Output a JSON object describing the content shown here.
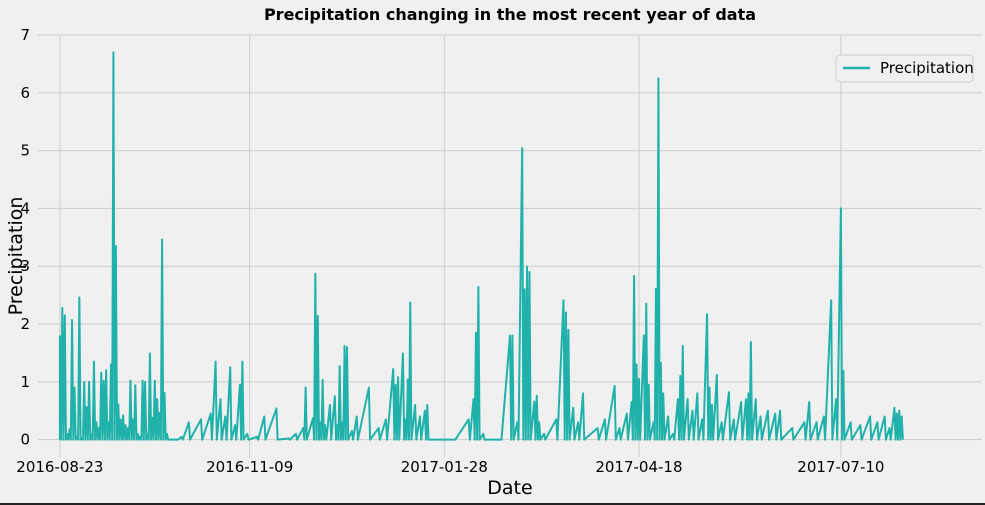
{
  "chart_data": {
    "type": "line",
    "title": "Precipitation changing in the most recent year of data",
    "xlabel": "Date",
    "ylabel": "Precipitation",
    "x_range": [
      "2016-08-14",
      "2017-09-06"
    ],
    "ylim": [
      -0.3,
      7.0
    ],
    "x_ticks": [
      "2016-08-23",
      "2016-11-09",
      "2017-01-28",
      "2017-04-18",
      "2017-07-10"
    ],
    "y_ticks": [
      0,
      1,
      2,
      3,
      4,
      5,
      6,
      7
    ],
    "grid": true,
    "legend": {
      "placement": "top-right",
      "entries": [
        "Precipitation"
      ]
    },
    "series": [
      {
        "name": "Precipitation",
        "color": "#20b2aa",
        "points": [
          [
            "2016-08-23",
            1.79
          ],
          [
            "2016-08-24",
            2.28
          ],
          [
            "2016-08-25",
            2.15
          ],
          [
            "2016-08-26",
            0.1
          ],
          [
            "2016-08-27",
            0.18
          ],
          [
            "2016-08-28",
            2.07
          ],
          [
            "2016-08-29",
            0.9
          ],
          [
            "2016-08-30",
            0.05
          ],
          [
            "2016-08-31",
            2.46
          ],
          [
            "2016-09-01",
            0.02
          ],
          [
            "2016-09-02",
            1.0
          ],
          [
            "2016-09-03",
            0.56
          ],
          [
            "2016-09-04",
            1.0
          ],
          [
            "2016-09-05",
            0.1
          ],
          [
            "2016-09-06",
            1.35
          ],
          [
            "2016-09-07",
            0.3
          ],
          [
            "2016-09-08",
            0.2
          ],
          [
            "2016-09-09",
            1.16
          ],
          [
            "2016-09-10",
            1.02
          ],
          [
            "2016-09-11",
            1.2
          ],
          [
            "2016-09-12",
            0.3
          ],
          [
            "2016-09-13",
            1.3
          ],
          [
            "2016-09-14",
            6.7
          ],
          [
            "2016-09-15",
            3.35
          ],
          [
            "2016-09-16",
            0.61
          ],
          [
            "2016-09-17",
            0.35
          ],
          [
            "2016-09-18",
            0.42
          ],
          [
            "2016-09-19",
            0.25
          ],
          [
            "2016-09-20",
            0.2
          ],
          [
            "2016-09-21",
            1.02
          ],
          [
            "2016-09-22",
            0.35
          ],
          [
            "2016-09-23",
            0.94
          ],
          [
            "2016-09-24",
            0.1
          ],
          [
            "2016-09-25",
            0.05
          ],
          [
            "2016-09-26",
            1.02
          ],
          [
            "2016-09-27",
            1.0
          ],
          [
            "2016-09-28",
            0.1
          ],
          [
            "2016-09-29",
            1.49
          ],
          [
            "2016-09-30",
            0.38
          ],
          [
            "2016-10-01",
            1.02
          ],
          [
            "2016-10-02",
            0.7
          ],
          [
            "2016-10-03",
            0.46
          ],
          [
            "2016-10-04",
            3.46
          ],
          [
            "2016-10-05",
            0.81
          ],
          [
            "2016-10-06",
            0.1
          ],
          [
            "2016-10-10",
            0.0
          ],
          [
            "2016-10-12",
            0.05
          ],
          [
            "2016-10-15",
            0.3
          ],
          [
            "2016-10-20",
            0.35
          ],
          [
            "2016-10-24",
            0.45
          ],
          [
            "2016-10-26",
            1.35
          ],
          [
            "2016-10-28",
            0.7
          ],
          [
            "2016-10-30",
            0.4
          ],
          [
            "2016-11-01",
            1.25
          ],
          [
            "2016-11-03",
            0.25
          ],
          [
            "2016-11-05",
            0.95
          ],
          [
            "2016-11-06",
            1.35
          ],
          [
            "2016-11-08",
            0.1
          ],
          [
            "2016-11-12",
            0.05
          ],
          [
            "2016-11-15",
            0.4
          ],
          [
            "2016-11-20",
            0.54
          ],
          [
            "2016-11-25",
            0.02
          ],
          [
            "2016-11-28",
            0.1
          ],
          [
            "2016-12-01",
            0.2
          ],
          [
            "2016-12-02",
            0.9
          ],
          [
            "2016-12-05",
            0.37
          ],
          [
            "2016-12-06",
            2.87
          ],
          [
            "2016-12-07",
            2.14
          ],
          [
            "2016-12-08",
            0.3
          ],
          [
            "2016-12-09",
            1.03
          ],
          [
            "2016-12-10",
            0.25
          ],
          [
            "2016-12-12",
            0.6
          ],
          [
            "2016-12-14",
            0.75
          ],
          [
            "2016-12-15",
            0.25
          ],
          [
            "2016-12-16",
            1.27
          ],
          [
            "2016-12-17",
            0.3
          ],
          [
            "2016-12-18",
            1.62
          ],
          [
            "2016-12-19",
            1.6
          ],
          [
            "2016-12-21",
            0.15
          ],
          [
            "2016-12-23",
            0.4
          ],
          [
            "2016-12-28",
            0.9
          ],
          [
            "2017-01-01",
            0.2
          ],
          [
            "2017-01-04",
            0.35
          ],
          [
            "2017-01-07",
            1.22
          ],
          [
            "2017-01-08",
            0.95
          ],
          [
            "2017-01-09",
            1.08
          ],
          [
            "2017-01-11",
            1.49
          ],
          [
            "2017-01-12",
            0.35
          ],
          [
            "2017-01-13",
            1.04
          ],
          [
            "2017-01-14",
            2.37
          ],
          [
            "2017-01-16",
            0.6
          ],
          [
            "2017-01-18",
            0.4
          ],
          [
            "2017-01-20",
            0.5
          ],
          [
            "2017-01-21",
            0.6
          ],
          [
            "2017-02-01",
            0.0
          ],
          [
            "2017-02-07",
            0.35
          ],
          [
            "2017-02-09",
            0.7
          ],
          [
            "2017-02-10",
            1.85
          ],
          [
            "2017-02-11",
            2.64
          ],
          [
            "2017-02-13",
            0.1
          ],
          [
            "2017-02-20",
            0.0
          ],
          [
            "2017-02-24",
            1.8
          ],
          [
            "2017-02-25",
            1.8
          ],
          [
            "2017-02-27",
            0.3
          ],
          [
            "2017-03-01",
            5.04
          ],
          [
            "2017-03-02",
            2.6
          ],
          [
            "2017-03-03",
            2.99
          ],
          [
            "2017-03-04",
            2.9
          ],
          [
            "2017-03-06",
            0.66
          ],
          [
            "2017-03-07",
            0.76
          ],
          [
            "2017-03-08",
            0.3
          ],
          [
            "2017-03-10",
            0.1
          ],
          [
            "2017-03-15",
            0.35
          ],
          [
            "2017-03-18",
            2.41
          ],
          [
            "2017-03-19",
            2.2
          ],
          [
            "2017-03-20",
            1.9
          ],
          [
            "2017-03-22",
            0.55
          ],
          [
            "2017-03-24",
            0.3
          ],
          [
            "2017-03-26",
            0.8
          ],
          [
            "2017-04-01",
            0.2
          ],
          [
            "2017-04-04",
            0.35
          ],
          [
            "2017-04-08",
            0.93
          ],
          [
            "2017-04-10",
            0.2
          ],
          [
            "2017-04-13",
            0.45
          ],
          [
            "2017-04-15",
            0.65
          ],
          [
            "2017-04-16",
            2.83
          ],
          [
            "2017-04-17",
            1.3
          ],
          [
            "2017-04-18",
            1.05
          ],
          [
            "2017-04-20",
            1.8
          ],
          [
            "2017-04-21",
            2.35
          ],
          [
            "2017-04-22",
            0.95
          ],
          [
            "2017-04-24",
            0.3
          ],
          [
            "2017-04-25",
            2.61
          ],
          [
            "2017-04-26",
            6.25
          ],
          [
            "2017-04-27",
            1.33
          ],
          [
            "2017-04-28",
            0.8
          ],
          [
            "2017-04-30",
            0.4
          ],
          [
            "2017-05-02",
            0.1
          ],
          [
            "2017-05-04",
            0.7
          ],
          [
            "2017-05-05",
            1.1
          ],
          [
            "2017-05-06",
            1.62
          ],
          [
            "2017-05-08",
            0.7
          ],
          [
            "2017-05-10",
            0.5
          ],
          [
            "2017-05-12",
            0.8
          ],
          [
            "2017-05-14",
            0.35
          ],
          [
            "2017-05-16",
            2.17
          ],
          [
            "2017-05-17",
            0.9
          ],
          [
            "2017-05-18",
            0.6
          ],
          [
            "2017-05-20",
            1.12
          ],
          [
            "2017-05-22",
            0.3
          ],
          [
            "2017-05-25",
            0.82
          ],
          [
            "2017-05-27",
            0.35
          ],
          [
            "2017-05-30",
            0.65
          ],
          [
            "2017-06-01",
            0.7
          ],
          [
            "2017-06-02",
            0.8
          ],
          [
            "2017-06-03",
            1.69
          ],
          [
            "2017-06-05",
            0.7
          ],
          [
            "2017-06-07",
            0.4
          ],
          [
            "2017-06-10",
            0.5
          ],
          [
            "2017-06-13",
            0.45
          ],
          [
            "2017-06-15",
            0.5
          ],
          [
            "2017-06-20",
            0.2
          ],
          [
            "2017-06-25",
            0.3
          ],
          [
            "2017-06-27",
            0.65
          ],
          [
            "2017-06-30",
            0.3
          ],
          [
            "2017-07-03",
            0.4
          ],
          [
            "2017-07-06",
            2.41
          ],
          [
            "2017-07-08",
            0.7
          ],
          [
            "2017-07-10",
            4.0
          ],
          [
            "2017-07-11",
            1.19
          ],
          [
            "2017-07-14",
            0.3
          ],
          [
            "2017-07-18",
            0.25
          ],
          [
            "2017-07-22",
            0.4
          ],
          [
            "2017-07-25",
            0.3
          ],
          [
            "2017-07-28",
            0.4
          ],
          [
            "2017-07-30",
            0.2
          ],
          [
            "2017-08-01",
            0.55
          ],
          [
            "2017-08-02",
            0.45
          ],
          [
            "2017-08-03",
            0.5
          ],
          [
            "2017-08-04",
            0.4
          ]
        ]
      }
    ]
  }
}
